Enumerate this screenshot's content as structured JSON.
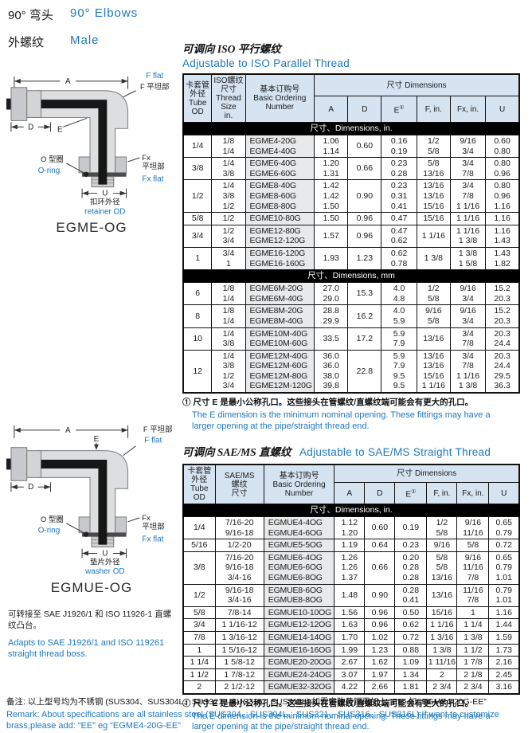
{
  "colors": {
    "accent_blue": "#1d78be",
    "header_bg": "#d6e4f2",
    "band_bg": "#000000",
    "shade_gray": "#e8e9ea"
  },
  "header": {
    "title_zh": "90° 弯头",
    "title_en": "90°  Elbows",
    "subtitle_zh": "外螺纹",
    "subtitle_en": "Male"
  },
  "diagram1": {
    "caption": "EGME-OG",
    "labels": {
      "a": "A",
      "d": "D",
      "e": "E",
      "u": "U",
      "f_flat_en": "F flat",
      "f_flat_zh": "F 平坦部",
      "fx": "Fx",
      "fx_zh": "平坦部",
      "fx_flat_en": "Fx flat",
      "oring_zh": "O 型圈",
      "oring_en": "O-ring",
      "u_zh": "扣环外径",
      "u_en": "retainer OD"
    }
  },
  "diagram2": {
    "caption": "EGMUE-OG",
    "labels": {
      "a": "A",
      "d": "D",
      "e": "E",
      "u": "U",
      "f_flat_zh": "F 平坦部",
      "f_flat_en": "F flat",
      "fx": "Fx",
      "fx_zh": "平坦部",
      "fx_flat_en": "Fx flat",
      "oring_zh": "O 型圈",
      "oring_en": "O-ring",
      "u_zh": "垫片外径",
      "u_en": "washer OD"
    },
    "note_zh": "可转接至 SAE J1926/1 和 ISO 11926-1 直螺纹凸台。",
    "note_en": "Adapts to SAE J1926/1 and ISO 119261 straight thread boss."
  },
  "table1": {
    "title_zh": "可调向 ISO  平行螺纹",
    "title_en": "Adjustable to  ISO  Parallel Thread",
    "headers": {
      "col1": [
        "卡套管",
        "外径",
        "Tube",
        "OD"
      ],
      "col2": [
        "ISO螺纹",
        "尺寸",
        "Thread",
        "Size",
        "in."
      ],
      "col3": [
        "基本订购号",
        "Basic Ordering",
        "Number"
      ],
      "dims": "尺寸  Dimensions",
      "sub": [
        "A",
        "D",
        "E",
        "F, in.",
        "Fx, in.",
        "U"
      ],
      "e_mark": "①"
    },
    "col_widths": [
      8.5,
      10,
      20.5,
      10,
      10,
      10.5,
      10,
      10.5,
      10
    ],
    "sections": [
      {
        "band": "尺寸、Dimensions, in.",
        "groups": [
          {
            "od": "1/4",
            "thread": [
              "1/8",
              "1/4"
            ],
            "number": [
              "EGME4-20G",
              "EGME4-40G"
            ],
            "dims": [
              [
                "1.06",
                "1.14"
              ],
              [
                "0.60"
              ],
              [
                "0.16",
                "0.19"
              ],
              [
                "1/2",
                "5/8"
              ],
              [
                "9/16",
                "3/4"
              ],
              [
                "0.60",
                "0.80"
              ]
            ]
          },
          {
            "od": "3/8",
            "thread": [
              "1/4",
              "3/8"
            ],
            "number": [
              "EGME6-40G",
              "EGME6-60G"
            ],
            "dims": [
              [
                "1.20",
                "1.31"
              ],
              [
                "0.66"
              ],
              [
                "0.23",
                "0.28"
              ],
              [
                "5/8",
                "13/16"
              ],
              [
                "3/4",
                "7/8"
              ],
              [
                "0.80",
                "0.96"
              ]
            ]
          },
          {
            "od": "1/2",
            "thread": [
              "1/4",
              "3/8",
              "1/2"
            ],
            "number": [
              "EGME8-40G",
              "EGME8-60G",
              "EGME8-80G"
            ],
            "dims": [
              [
                "1.42",
                "1.42",
                "1.50"
              ],
              [
                "0.90"
              ],
              [
                "0.23",
                "0.31",
                "0.41"
              ],
              [
                "13/16",
                "13/16",
                "15/16"
              ],
              [
                "3/4",
                "7/8",
                "1 1/16"
              ],
              [
                "0.80",
                "0.96",
                "1.16"
              ]
            ]
          },
          {
            "od": "5/8",
            "thread": [
              "1/2"
            ],
            "number": [
              "EGME10-80G"
            ],
            "dims": [
              [
                "1.50"
              ],
              [
                "0.96"
              ],
              [
                "0.47"
              ],
              [
                "15/16"
              ],
              [
                "1 1/16"
              ],
              [
                "1.16"
              ]
            ]
          },
          {
            "od": "3/4",
            "thread": [
              "1/2",
              "3/4"
            ],
            "number": [
              "EGME12-80G",
              "EGME12-120G"
            ],
            "dims": [
              [
                "1.57"
              ],
              [
                "0.96"
              ],
              [
                "0.47",
                "0.62"
              ],
              [
                "1 1/16"
              ],
              [
                "1 1/16",
                "1 3/8"
              ],
              [
                "1.16",
                "1.43"
              ]
            ]
          },
          {
            "od": "1",
            "thread": [
              "3/4",
              "1"
            ],
            "number": [
              "EGME16-120G",
              "EGME16-160G"
            ],
            "dims": [
              [
                "1.93"
              ],
              [
                "1.23"
              ],
              [
                "0.62",
                "0.78"
              ],
              [
                "1 3/8"
              ],
              [
                "1 3/8",
                "1 5/8"
              ],
              [
                "1.43",
                "1.82"
              ]
            ]
          }
        ]
      },
      {
        "band": "尺寸、Dimensions, mm",
        "groups": [
          {
            "od": "6",
            "thread": [
              "1/8",
              "1/4"
            ],
            "number": [
              "EGME6M-20G",
              "EGME6M-40G"
            ],
            "dims": [
              [
                "27.0",
                "29.0"
              ],
              [
                "15.3"
              ],
              [
                "4.0",
                "4.8"
              ],
              [
                "1/2",
                "5/8"
              ],
              [
                "9/16",
                "3/4"
              ],
              [
                "15.2",
                "20.3"
              ]
            ]
          },
          {
            "od": "8",
            "thread": [
              "1/8",
              "1/4"
            ],
            "number": [
              "EGME8M-20G",
              "EGME8M-40G"
            ],
            "dims": [
              [
                "28.8",
                "29.9"
              ],
              [
                "16.2"
              ],
              [
                "4.0",
                "5.9"
              ],
              [
                "9/16",
                "5/8"
              ],
              [
                "9/16",
                "3/4"
              ],
              [
                "15.2",
                "20.3"
              ]
            ]
          },
          {
            "od": "10",
            "thread": [
              "1/4",
              "3/8"
            ],
            "number": [
              "EGME10M-40G",
              "EGME10M-60G"
            ],
            "dims": [
              [
                "33.5"
              ],
              [
                "17.2"
              ],
              [
                "5.9",
                "7.9"
              ],
              [
                "13/16"
              ],
              [
                "3/4",
                "7/8"
              ],
              [
                "20.3",
                "24.4"
              ]
            ]
          },
          {
            "od": "12",
            "thread": [
              "1/4",
              "3/8",
              "1/2",
              "3/4"
            ],
            "number": [
              "EGME12M-40G",
              "EGME12M-60G",
              "EGME12M-80G",
              "EGME12M-120G"
            ],
            "dims": [
              [
                "36.0",
                "36.0",
                "38.0",
                "39.8"
              ],
              [
                "22.8"
              ],
              [
                "5.9",
                "7.9",
                "9.5",
                "9.5"
              ],
              [
                "13/16",
                "13/16",
                "15/16",
                "1 1/16"
              ],
              [
                "3/4",
                "7/8",
                "1 1/16",
                "1 3/8"
              ],
              [
                "20.3",
                "24.4",
                "29.5",
                "36.3"
              ]
            ]
          }
        ]
      }
    ],
    "footnote_zh": "① 尺寸 E 是最小公称孔口。这些接头在管螺纹/直螺纹端可能会有更大的孔口。",
    "footnote_en": "The E dimension is the minimum nominal opening. These fittings may have a larger opening at the pipe/straight thread end."
  },
  "table2": {
    "title_zh": "可调向 SAE/MS  直螺纹",
    "title_en": "Adjustable to SAE/MS Straight Thread",
    "headers": {
      "col1": [
        "卡套管",
        "外径",
        "Tube",
        "OD"
      ],
      "col2": [
        "SAE/MS",
        "螺纹",
        "尺寸"
      ],
      "col3": [
        "基本订购号",
        "Basic Ordering",
        "Number"
      ],
      "dims": "尺寸  Dimensions",
      "sub": [
        "A",
        "D",
        "E",
        "F, in.",
        "Fx, in.",
        "U"
      ],
      "e_mark": "①"
    },
    "col_widths": [
      9.5,
      14.5,
      21,
      9,
      9,
      9.5,
      9,
      9.5,
      9
    ],
    "sections": [
      {
        "band": "尺寸、Dimensions, in.",
        "groups": [
          {
            "od": "1/4",
            "thread": [
              "7/16-20",
              "9/16-18"
            ],
            "number": [
              "EGMUE4-4OG",
              "EGMUE4-6OG"
            ],
            "dims": [
              [
                "1.12",
                "1.20"
              ],
              [
                "0.60"
              ],
              [
                "0.19"
              ],
              [
                "1/2",
                "5/8"
              ],
              [
                "9/16",
                "11/16"
              ],
              [
                "0.65",
                "0.79"
              ]
            ]
          },
          {
            "od": "5/16",
            "thread": [
              "1/2-20"
            ],
            "number": [
              "EGMUE5-5OG"
            ],
            "dims": [
              [
                "1.19"
              ],
              [
                "0.64"
              ],
              [
                "0.23"
              ],
              [
                "9/16"
              ],
              [
                "5/8"
              ],
              [
                "0.72"
              ]
            ]
          },
          {
            "od": "3/8",
            "thread": [
              "7/16-20",
              "9/16-18",
              "3/4-16"
            ],
            "number": [
              "EGMUE6-4OG",
              "EGMUE6-6OG",
              "EGMUE6-8OG"
            ],
            "dims": [
              [
                "1.26",
                "1.26",
                "1.37"
              ],
              [
                "0.66"
              ],
              [
                "0.20",
                "0.28",
                "0.28"
              ],
              [
                "5/8",
                "5/8",
                "13/16"
              ],
              [
                "9/16",
                "11/16",
                "7/8"
              ],
              [
                "0.65",
                "0.79",
                "1.01"
              ]
            ]
          },
          {
            "od": "1/2",
            "thread": [
              "9/16-18",
              "3/4-16"
            ],
            "number": [
              "EGMUE8-6OG",
              "EGMUE8-8OG"
            ],
            "dims": [
              [
                "1.48"
              ],
              [
                "0.90"
              ],
              [
                "0.28",
                "0.41"
              ],
              [
                "13/16"
              ],
              [
                "11/16",
                "7/8"
              ],
              [
                "0.79",
                "1.01"
              ]
            ]
          },
          {
            "od": "5/8",
            "thread": [
              "7/8-14"
            ],
            "number": [
              "EGMUE10-10OG"
            ],
            "dims": [
              [
                "1.56"
              ],
              [
                "0.96"
              ],
              [
                "0.50"
              ],
              [
                "15/16"
              ],
              [
                "1"
              ],
              [
                "1.16"
              ]
            ]
          },
          {
            "od": "3/4",
            "thread": [
              "1 1/16-12"
            ],
            "number": [
              "EGMUE12-12OG"
            ],
            "dims": [
              [
                "1.63"
              ],
              [
                "0.96"
              ],
              [
                "0.62"
              ],
              [
                "1 1/16"
              ],
              [
                "1 1/4"
              ],
              [
                "1.44"
              ]
            ]
          },
          {
            "od": "7/8",
            "thread": [
              "1 3/16-12"
            ],
            "number": [
              "EGMUE14-14OG"
            ],
            "dims": [
              [
                "1.70"
              ],
              [
                "1.02"
              ],
              [
                "0.72"
              ],
              [
                "1 3/16"
              ],
              [
                "1 3/8"
              ],
              [
                "1.59"
              ]
            ]
          },
          {
            "od": "1",
            "thread": [
              "1 5/16-12"
            ],
            "number": [
              "EGMUE16-16OG"
            ],
            "dims": [
              [
                "1.99"
              ],
              [
                "1.23"
              ],
              [
                "0.88"
              ],
              [
                "1 3/8"
              ],
              [
                "1 1/2"
              ],
              [
                "1.73"
              ]
            ]
          },
          {
            "od": "1 1/4",
            "thread": [
              "1 5/8-12"
            ],
            "number": [
              "EGMUE20-20OG"
            ],
            "dims": [
              [
                "2.67"
              ],
              [
                "1.62"
              ],
              [
                "1.09"
              ],
              [
                "1 11/16"
              ],
              [
                "1 7/8"
              ],
              [
                "2.16"
              ]
            ]
          },
          {
            "od": "1 1/2",
            "thread": [
              "1 7/8-12"
            ],
            "number": [
              "EGMUE24-24OG"
            ],
            "dims": [
              [
                "3.07"
              ],
              [
                "1.97"
              ],
              [
                "1.34"
              ],
              [
                "2"
              ],
              [
                "2 1/8"
              ],
              [
                "2.45"
              ]
            ]
          },
          {
            "od": "2",
            "thread": [
              "2 1/2-12"
            ],
            "number": [
              "EGMUE32-32OG"
            ],
            "dims": [
              [
                "4.22"
              ],
              [
                "2.66"
              ],
              [
                "1.81"
              ],
              [
                "2 3/4"
              ],
              [
                "2 3/4"
              ],
              [
                "3.16"
              ]
            ]
          }
        ]
      }
    ],
    "footnote_zh": "① 尺寸 E 是最小公称孔口。这些接头在管螺纹/直螺纹端可能会有更大的孔口。",
    "footnote_en": "The E dimension is the minimum nominal opening. These fittings may have a larger opening at the pipe/straight thread end."
  },
  "remark": {
    "zh": "备注: 以上型号均为不锈钢 (SUS304、SUS304L、SUS321、SUS316、SUS316L) 如需定购黄铜再加上 “EE” 如 “EGME4-20G-EE”",
    "en": "Remark:  About specifications are all stainless steel (SUS304、SUS304L、SUS321、SUS316、SUS316L) If want to customize brass,please add:  “EE”  eg  “EGME4-20G-EE”"
  }
}
